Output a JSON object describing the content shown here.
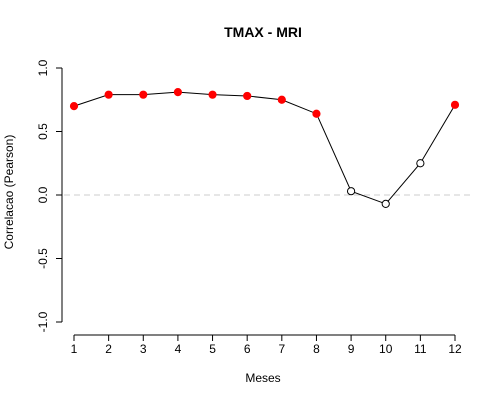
{
  "chart_data": {
    "type": "line",
    "title": "TMAX - MRI",
    "xlabel": "Meses",
    "ylabel": "Correlacao (Pearson)",
    "x": [
      1,
      2,
      3,
      4,
      5,
      6,
      7,
      8,
      9,
      10,
      11,
      12
    ],
    "xticks": [
      "1",
      "2",
      "3",
      "4",
      "5",
      "6",
      "7",
      "8",
      "9",
      "10",
      "11",
      "12"
    ],
    "xlim": [
      1,
      12
    ],
    "ylim": [
      -1.0,
      1.0
    ],
    "yticks": [
      "-1.0",
      "-0.5",
      "0.0",
      "0.5",
      "1.0"
    ],
    "ytick_values": [
      -1.0,
      -0.5,
      0.0,
      0.5,
      1.0
    ],
    "reference_line": {
      "y": 0.0,
      "style": "dashed",
      "color": "#cccccc"
    },
    "grid": false,
    "series": [
      {
        "values": [
          0.7,
          0.79,
          0.79,
          0.81,
          0.79,
          0.78,
          0.75,
          0.64,
          0.03,
          -0.07,
          0.25,
          0.71
        ],
        "significant": [
          true,
          true,
          true,
          true,
          true,
          true,
          true,
          true,
          false,
          false,
          false,
          true
        ],
        "line_color": "#000000",
        "significant_color": "#ff0000",
        "nonsignificant_style": "open-circle"
      }
    ]
  }
}
